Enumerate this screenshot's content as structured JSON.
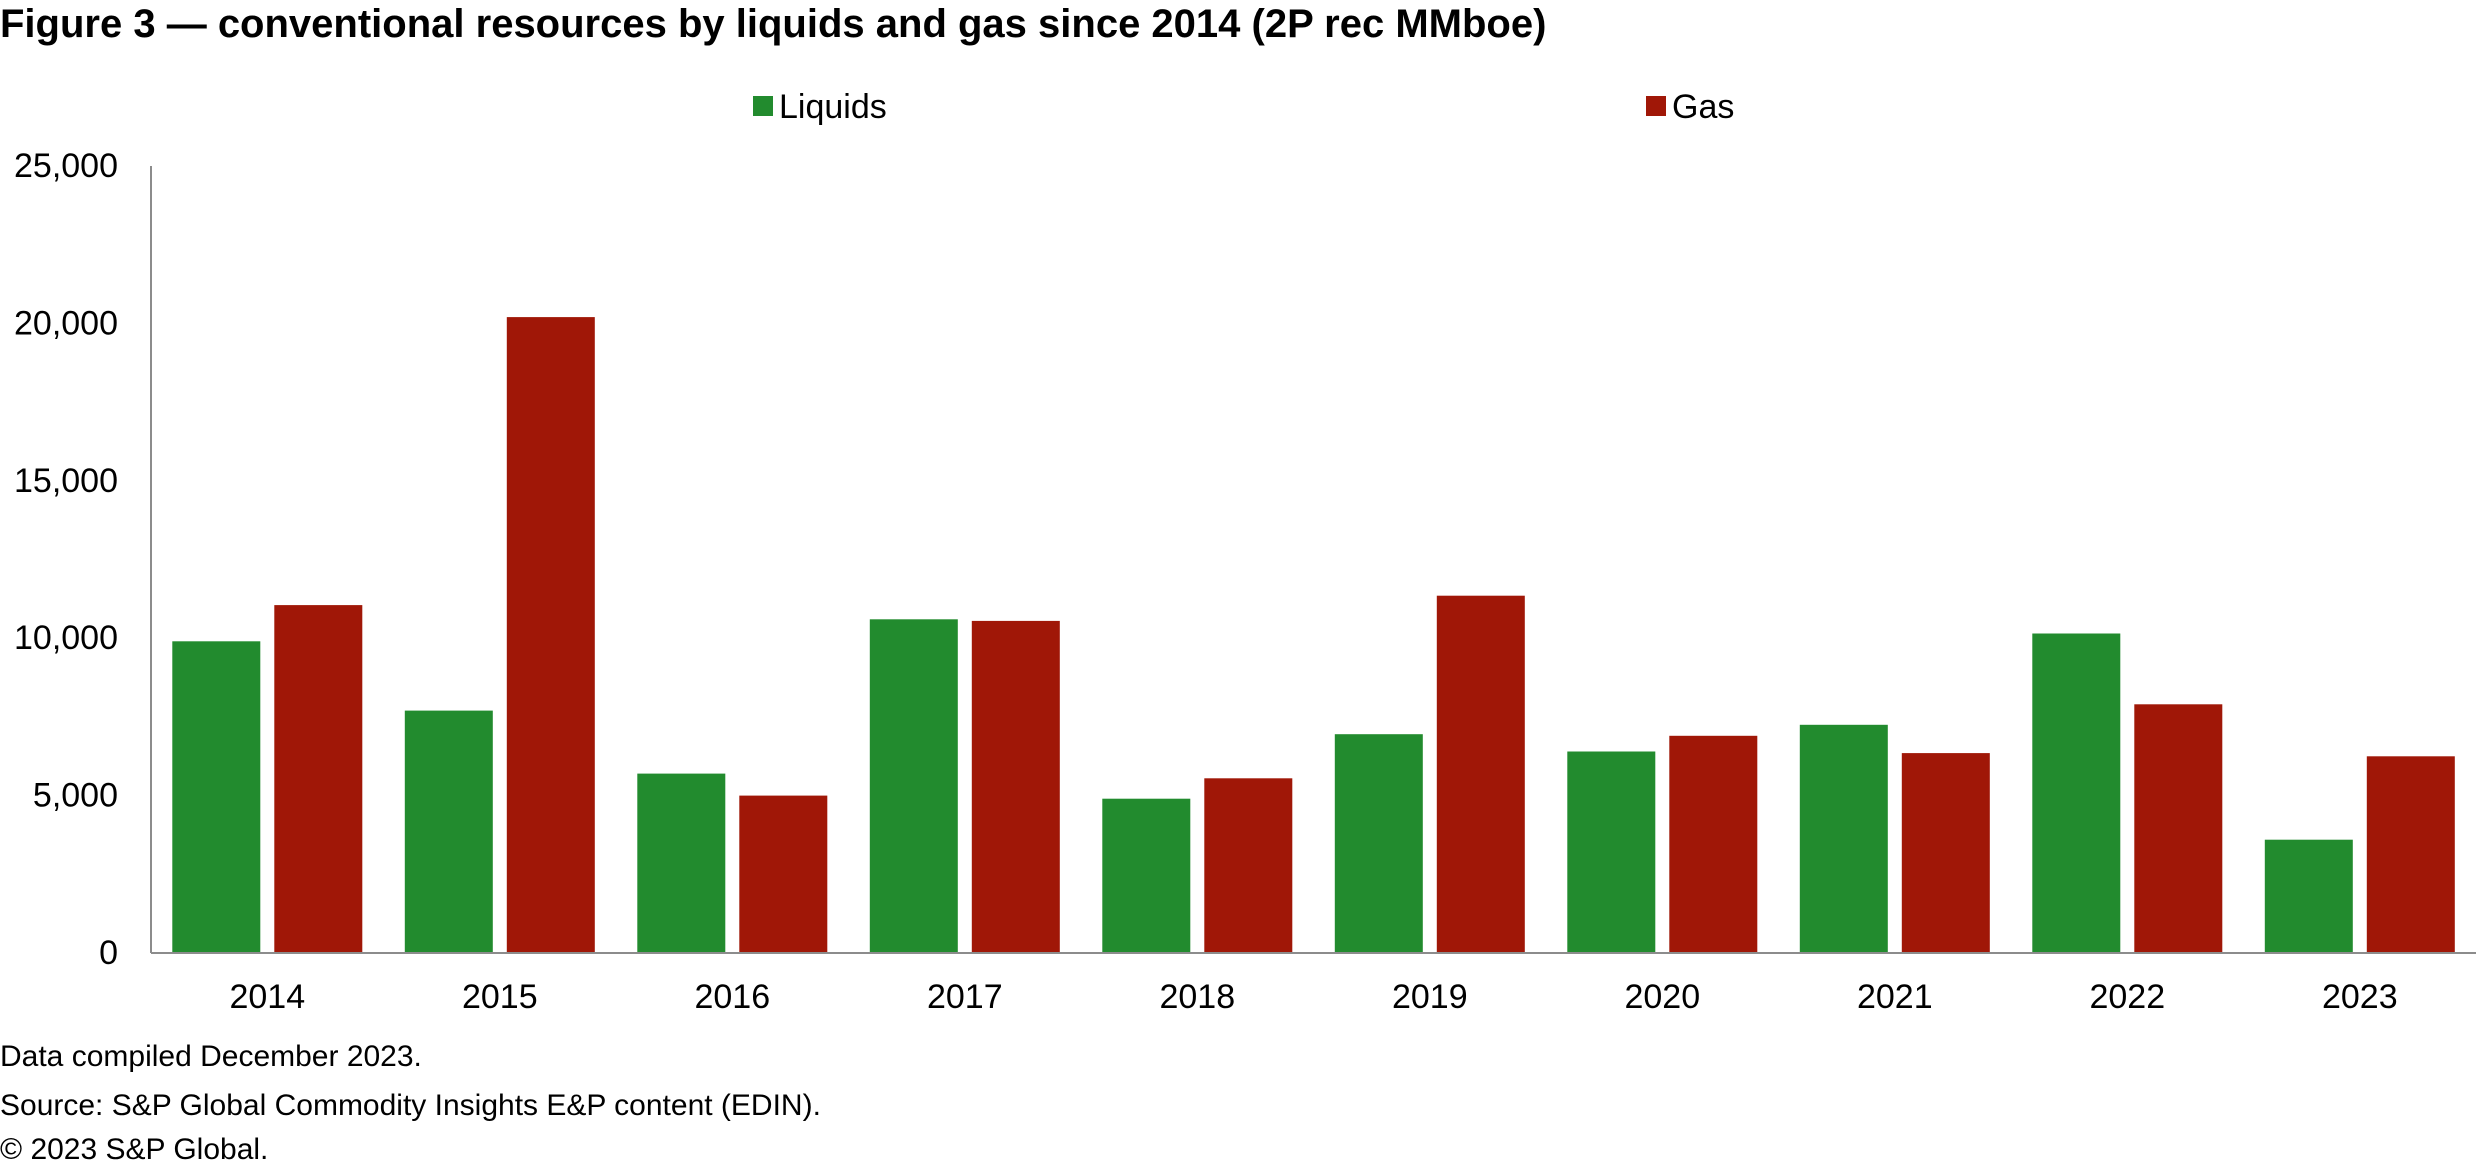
{
  "chart_data": {
    "type": "bar",
    "title": "Figure 3 — conventional resources by liquids and gas since 2014 (2P rec MMboe)",
    "categories": [
      "2014",
      "2015",
      "2016",
      "2017",
      "2018",
      "2019",
      "2020",
      "2021",
      "2022",
      "2023"
    ],
    "series": [
      {
        "name": "Liquids",
        "color": "#228b2e",
        "values": [
          9900,
          7700,
          5700,
          10600,
          4900,
          6950,
          6400,
          7250,
          10150,
          3600
        ]
      },
      {
        "name": "Gas",
        "color": "#a01707",
        "values": [
          11050,
          20200,
          5000,
          10550,
          5550,
          11350,
          6900,
          6350,
          7900,
          6250
        ]
      }
    ],
    "yticks": [
      "0",
      "5,000",
      "10,000",
      "15,000",
      "20,000",
      "25,000"
    ],
    "ylim": [
      0,
      25000
    ],
    "xlabel": "",
    "ylabel": "",
    "grid": false,
    "legend": "top-center"
  },
  "notes": {
    "compiled": "Data compiled December 2023.",
    "source": "Source: S&P Global Commodity Insights E&P content (EDIN).",
    "copyright": "© 2023 S&P Global."
  }
}
